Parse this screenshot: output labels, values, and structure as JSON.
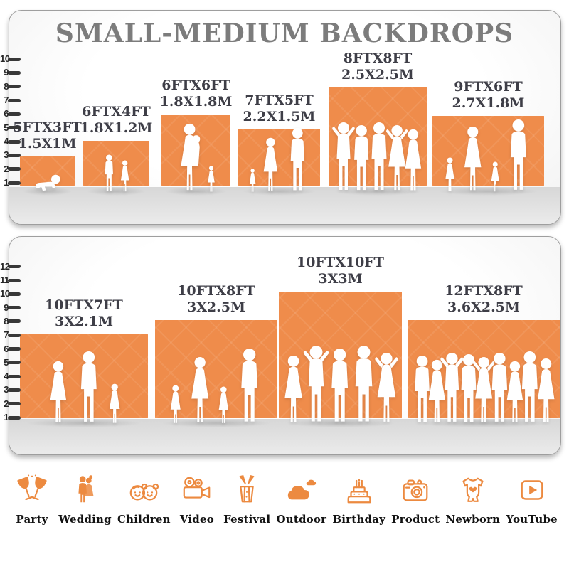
{
  "title": "SMALL-MEDIUM BACKDROPS",
  "colors": {
    "bar_orange": "#EF8C4B",
    "icon_orange": "#EC8A40",
    "title_gray": "#7C7C7C",
    "label_dark": "#3E3E47",
    "tick_dark": "#383838",
    "silhouette_white": "#FFFFFF"
  },
  "chart_data": [
    {
      "type": "bar",
      "name": "small-medium-backdrops-top",
      "title": "SMALL-MEDIUM BACKDROPS",
      "unit": "feet",
      "axis": {
        "ticks": [
          1,
          2,
          3,
          4,
          5,
          6,
          7,
          8,
          9,
          10
        ],
        "ylim": [
          0,
          10
        ],
        "position": "left-ruler"
      },
      "bars": [
        {
          "size_ft": "5FTX3FT",
          "size_m": "1.5X1M",
          "width_ft": 5,
          "height_ft": 3,
          "figures": [
            "crawling-baby"
          ]
        },
        {
          "size_ft": "6FTX4FT",
          "size_m": "1.8X1.2M",
          "width_ft": 6,
          "height_ft": 4,
          "figures": [
            "boy",
            "girl"
          ]
        },
        {
          "size_ft": "6FTX6FT",
          "size_m": "1.8X1.8M",
          "width_ft": 6,
          "height_ft": 6,
          "figures": [
            "mother-holding-child",
            "girl"
          ]
        },
        {
          "size_ft": "7FTX5FT",
          "size_m": "2.2X1.5M",
          "width_ft": 7,
          "height_ft": 5,
          "figures": [
            "toddler",
            "woman",
            "man"
          ]
        },
        {
          "size_ft": "8FTX8FT",
          "size_m": "2.5X2.5M",
          "width_ft": 8,
          "height_ft": 8,
          "figures": [
            "group-of-five-adults-posing"
          ]
        },
        {
          "size_ft": "9FTX6FT",
          "size_m": "2.7X1.8M",
          "width_ft": 9,
          "height_ft": 6,
          "figures": [
            "girl",
            "woman",
            "girl",
            "man"
          ]
        }
      ]
    },
    {
      "type": "bar",
      "name": "small-medium-backdrops-bottom",
      "title": "",
      "unit": "feet",
      "axis": {
        "ticks": [
          1,
          2,
          3,
          4,
          5,
          6,
          7,
          8,
          9,
          10,
          11,
          12
        ],
        "ylim": [
          0,
          12
        ],
        "position": "left-ruler"
      },
      "bars": [
        {
          "size_ft": "10FTX7FT",
          "size_m": "3X2.1M",
          "width_ft": 10,
          "height_ft": 7,
          "figures": [
            "woman",
            "man",
            "girl"
          ]
        },
        {
          "size_ft": "10FTX8FT",
          "size_m": "3X2.5M",
          "width_ft": 10,
          "height_ft": 8,
          "figures": [
            "girl",
            "woman",
            "girl",
            "man"
          ]
        },
        {
          "size_ft": "10FTX10FT",
          "size_m": "3X3M",
          "width_ft": 10,
          "height_ft": 10,
          "figures": [
            "group-of-five-adults-posing"
          ]
        },
        {
          "size_ft": "12FTX8FT",
          "size_m": "3.6X2.5M",
          "width_ft": 12,
          "height_ft": 8,
          "figures": [
            "crowd-of-nine-adults"
          ]
        }
      ]
    }
  ],
  "categories": [
    {
      "label": "Party",
      "icon": "party-icon"
    },
    {
      "label": "Wedding",
      "icon": "wedding-icon"
    },
    {
      "label": "Children",
      "icon": "children-icon"
    },
    {
      "label": "Video",
      "icon": "video-icon"
    },
    {
      "label": "Festival",
      "icon": "festival-icon"
    },
    {
      "label": "Outdoor",
      "icon": "outdoor-icon"
    },
    {
      "label": "Birthday",
      "icon": "birthday-icon"
    },
    {
      "label": "Product",
      "icon": "product-icon"
    },
    {
      "label": "Newborn",
      "icon": "newborn-icon"
    },
    {
      "label": "YouTube",
      "icon": "youtube-icon"
    }
  ]
}
